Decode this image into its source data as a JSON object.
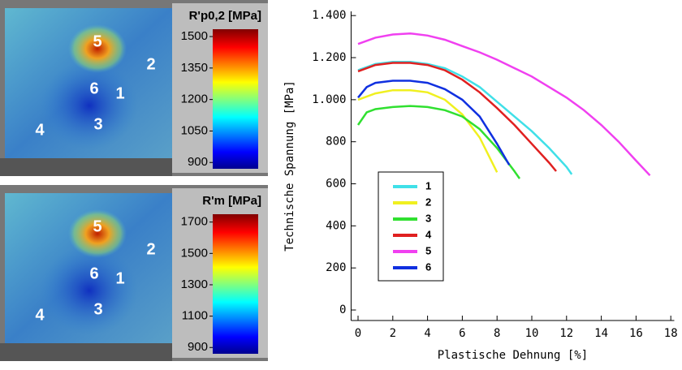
{
  "chart_data": [
    {
      "type": "heatmap-image",
      "colorbar_title": "R'p0,2 [MPa]",
      "clim": [
        870,
        1535
      ],
      "colorbar_ticks": [
        900,
        1050,
        1200,
        1350,
        1500
      ],
      "point_labels": [
        "5",
        "2",
        "6",
        "1",
        "3",
        "4"
      ]
    },
    {
      "type": "heatmap-image",
      "colorbar_title": "R'm [MPa]",
      "clim": [
        860,
        1750
      ],
      "colorbar_ticks": [
        900,
        1100,
        1300,
        1500,
        1700
      ],
      "point_labels": [
        "5",
        "2",
        "6",
        "1",
        "3",
        "4"
      ]
    },
    {
      "type": "line",
      "x_label": "Plastische Dehnung [%]",
      "y_label": "Technische Spannung [MPa]",
      "xlim": [
        -0.4,
        18.2
      ],
      "ylim": [
        -50,
        1420
      ],
      "xticks": [
        0,
        2,
        4,
        6,
        8,
        10,
        12,
        14,
        16,
        18
      ],
      "yticks": [
        0,
        200,
        400,
        600,
        800,
        {
          "value": 1000,
          "label": "1.000"
        },
        {
          "value": 1200,
          "label": "1.200"
        },
        {
          "value": 1400,
          "label": "1.400"
        }
      ],
      "series": [
        {
          "name": "1",
          "color": "#40e0e8",
          "x": [
            0,
            1,
            2,
            3,
            4,
            5,
            6,
            7,
            8,
            9,
            10,
            11,
            12,
            12.3
          ],
          "values": [
            1140,
            1170,
            1180,
            1180,
            1170,
            1150,
            1110,
            1060,
            990,
            920,
            850,
            770,
            680,
            645
          ]
        },
        {
          "name": "2",
          "color": "#f0f020",
          "x": [
            0,
            1,
            2,
            3,
            4,
            5,
            6,
            7,
            8
          ],
          "values": [
            1000,
            1030,
            1045,
            1045,
            1035,
            1000,
            930,
            820,
            655
          ]
        },
        {
          "name": "3",
          "color": "#30e030",
          "x": [
            0,
            0.5,
            1,
            2,
            3,
            4,
            5,
            6,
            7,
            8,
            9,
            9.3
          ],
          "values": [
            880,
            940,
            955,
            965,
            970,
            965,
            950,
            920,
            860,
            770,
            660,
            625
          ]
        },
        {
          "name": "4",
          "color": "#e02020",
          "x": [
            0,
            1,
            2,
            3,
            4,
            5,
            6,
            7,
            8,
            9,
            10,
            11,
            11.4
          ],
          "values": [
            1135,
            1165,
            1175,
            1175,
            1165,
            1140,
            1095,
            1035,
            960,
            880,
            790,
            700,
            660
          ]
        },
        {
          "name": "5",
          "color": "#f040f0",
          "x": [
            0,
            1,
            2,
            3,
            4,
            5,
            6,
            7,
            8,
            9,
            10,
            11,
            12,
            13,
            14,
            15,
            16,
            16.8
          ],
          "values": [
            1265,
            1295,
            1310,
            1315,
            1305,
            1285,
            1255,
            1225,
            1190,
            1150,
            1110,
            1060,
            1010,
            950,
            880,
            800,
            710,
            640
          ]
        },
        {
          "name": "6",
          "color": "#1030e0",
          "x": [
            0,
            0.5,
            1,
            2,
            3,
            4,
            5,
            6,
            7,
            8,
            8.7
          ],
          "values": [
            1010,
            1060,
            1080,
            1090,
            1090,
            1080,
            1050,
            1000,
            920,
            790,
            690
          ]
        }
      ]
    }
  ]
}
